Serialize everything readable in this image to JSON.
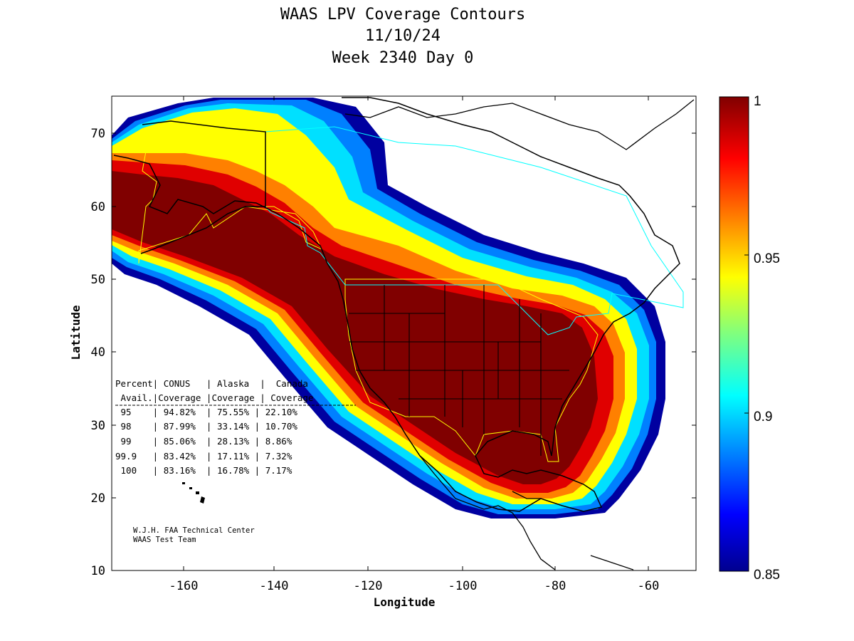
{
  "title": {
    "line1": "WAAS LPV Coverage Contours",
    "line2": "11/10/24",
    "line3": "Week 2340 Day 0"
  },
  "axes": {
    "xlabel": "Longitude",
    "ylabel": "Latitude",
    "xticks": [
      "-160",
      "-140",
      "-120",
      "-100",
      "-80",
      "-60"
    ],
    "yticks": [
      "10",
      "20",
      "30",
      "40",
      "50",
      "60",
      "70"
    ],
    "xlim": [
      -175,
      -50
    ],
    "ylim": [
      10,
      75
    ]
  },
  "colorbar": {
    "ticks": [
      "1",
      "0.95",
      "0.9",
      "0.85"
    ],
    "range": [
      0.85,
      1
    ],
    "colormap": "jet"
  },
  "stats_table": {
    "header1": "Percent| CONUS   | Alaska  |  Canada",
    "header2": " Avail.|Coverage |Coverage | Coverage",
    "rows": [
      " 95    | 94.82%  | 75.55% | 22.10%",
      " 98    | 87.99%  | 33.14% | 10.70%",
      " 99    | 85.06%  | 28.13% | 8.86%",
      "99.9   | 83.42%  | 17.11% | 7.32%",
      " 100   | 83.16%  | 16.78% | 7.17%"
    ]
  },
  "credit": {
    "line1": "W.J.H. FAA Technical Center",
    "line2": "WAAS Test Team"
  },
  "colors": {
    "full_coverage": "#800000",
    "region_outline_conus_alaska": "#ffff00",
    "region_outline_canada": "#00ffff",
    "coastline": "#000000"
  }
}
